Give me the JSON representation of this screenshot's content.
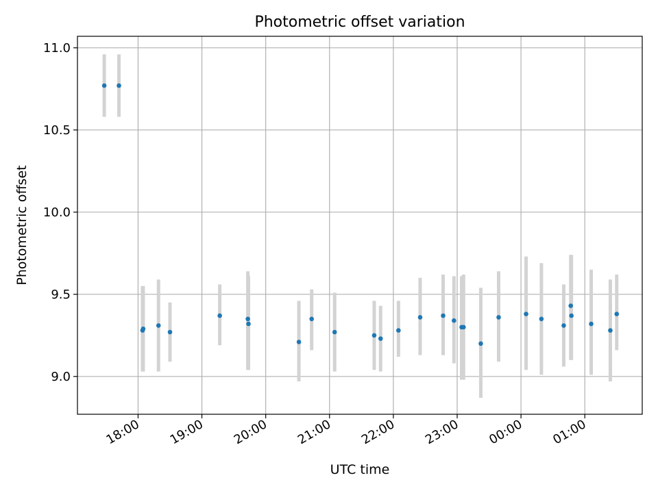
{
  "chart_data": {
    "type": "scatter",
    "title": "Photometric offset variation",
    "xlabel": "UTC time",
    "ylabel": "Photometric offset",
    "x_tick_labels": [
      "18:00",
      "19:00",
      "20:00",
      "21:00",
      "22:00",
      "23:00",
      "00:00",
      "01:00"
    ],
    "y_tick_labels": [
      "9.0",
      "9.5",
      "10.0",
      "10.5",
      "11.0"
    ],
    "x_axis": "UTC time, hours after 18:00",
    "x_ticks": [
      0,
      1,
      2,
      3,
      4,
      5,
      6,
      7
    ],
    "xlim": [
      -0.95,
      7.9
    ],
    "y_ticks": [
      9.0,
      9.5,
      10.0,
      10.5,
      11.0
    ],
    "ylim": [
      8.77,
      11.07
    ],
    "grid": true,
    "colors": {
      "marker": "#1f77b4",
      "errorbar": "#d3d3d3",
      "grid": "#b0b0b0"
    },
    "points": [
      {
        "x": -0.53,
        "y": 10.77,
        "lo": 10.58,
        "hi": 10.96
      },
      {
        "x": -0.3,
        "y": 10.77,
        "lo": 10.58,
        "hi": 10.96
      },
      {
        "x": 0.07,
        "y": 9.28,
        "lo": 9.03,
        "hi": 9.55
      },
      {
        "x": 0.08,
        "y": 9.29,
        "lo": 9.03,
        "hi": 9.55
      },
      {
        "x": 0.32,
        "y": 9.31,
        "lo": 9.03,
        "hi": 9.59
      },
      {
        "x": 0.5,
        "y": 9.27,
        "lo": 9.09,
        "hi": 9.45
      },
      {
        "x": 1.28,
        "y": 9.37,
        "lo": 9.19,
        "hi": 9.56
      },
      {
        "x": 1.72,
        "y": 9.35,
        "lo": 9.04,
        "hi": 9.64
      },
      {
        "x": 1.73,
        "y": 9.32,
        "lo": 9.04,
        "hi": 9.61
      },
      {
        "x": 2.52,
        "y": 9.21,
        "lo": 8.97,
        "hi": 9.46
      },
      {
        "x": 2.72,
        "y": 9.35,
        "lo": 9.16,
        "hi": 9.53
      },
      {
        "x": 3.08,
        "y": 9.27,
        "lo": 9.03,
        "hi": 9.51
      },
      {
        "x": 3.7,
        "y": 9.25,
        "lo": 9.04,
        "hi": 9.46
      },
      {
        "x": 3.8,
        "y": 9.23,
        "lo": 9.03,
        "hi": 9.43
      },
      {
        "x": 4.08,
        "y": 9.28,
        "lo": 9.12,
        "hi": 9.46
      },
      {
        "x": 4.42,
        "y": 9.36,
        "lo": 9.13,
        "hi": 9.6
      },
      {
        "x": 4.78,
        "y": 9.37,
        "lo": 9.13,
        "hi": 9.62
      },
      {
        "x": 4.95,
        "y": 9.34,
        "lo": 9.08,
        "hi": 9.61
      },
      {
        "x": 5.07,
        "y": 9.3,
        "lo": 8.98,
        "hi": 9.61
      },
      {
        "x": 5.1,
        "y": 9.3,
        "lo": 8.98,
        "hi": 9.62
      },
      {
        "x": 5.37,
        "y": 9.2,
        "lo": 8.87,
        "hi": 9.54
      },
      {
        "x": 5.65,
        "y": 9.36,
        "lo": 9.09,
        "hi": 9.64
      },
      {
        "x": 6.08,
        "y": 9.38,
        "lo": 9.04,
        "hi": 9.73
      },
      {
        "x": 6.32,
        "y": 9.35,
        "lo": 9.01,
        "hi": 9.69
      },
      {
        "x": 6.67,
        "y": 9.31,
        "lo": 9.06,
        "hi": 9.56
      },
      {
        "x": 6.78,
        "y": 9.43,
        "lo": 9.1,
        "hi": 9.74
      },
      {
        "x": 6.79,
        "y": 9.37,
        "lo": 9.1,
        "hi": 9.74
      },
      {
        "x": 7.1,
        "y": 9.32,
        "lo": 9.01,
        "hi": 9.65
      },
      {
        "x": 7.4,
        "y": 9.28,
        "lo": 8.97,
        "hi": 9.59
      },
      {
        "x": 7.5,
        "y": 9.38,
        "lo": 9.16,
        "hi": 9.62
      }
    ]
  }
}
